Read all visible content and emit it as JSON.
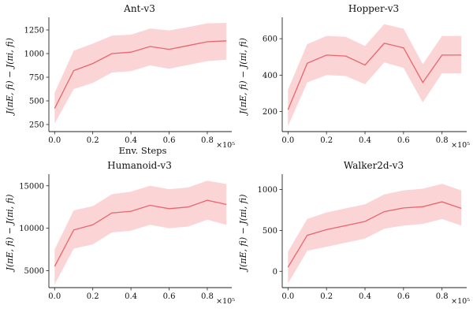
{
  "figure": {
    "background": "#ffffff",
    "line_color": "#e8666c",
    "band_color": "#f9c6c8"
  },
  "chart_data": [
    {
      "type": "line",
      "title": "Ant-v3",
      "xlabel": "Env. Steps",
      "ylabel": "J(πE, fi) − J(πi, fi)",
      "x_multiplier": "×10⁵",
      "x": [
        0.0,
        0.1,
        0.2,
        0.3,
        0.4,
        0.5,
        0.6,
        0.7,
        0.8,
        0.9
      ],
      "xlim": [
        -0.03,
        0.92
      ],
      "ylim": [
        175,
        1350
      ],
      "xticks": [
        0.0,
        0.2,
        0.4,
        0.6,
        0.8
      ],
      "xtick_labels": [
        "0.0",
        "0.2",
        "0.4",
        "0.6",
        "0.8"
      ],
      "yticks": [
        250,
        500,
        750,
        1000,
        1250
      ],
      "ytick_labels": [
        "250",
        "500",
        "750",
        "1000",
        "1250"
      ],
      "series": [
        {
          "mean": [
            420,
            820,
            895,
            1000,
            1015,
            1075,
            1045,
            1085,
            1125,
            1135
          ],
          "lower": [
            260,
            625,
            690,
            800,
            815,
            875,
            840,
            880,
            920,
            935
          ],
          "upper": [
            585,
            1030,
            1105,
            1190,
            1200,
            1265,
            1245,
            1280,
            1320,
            1325
          ]
        }
      ]
    },
    {
      "type": "line",
      "title": "Hopper-v3",
      "xlabel": "",
      "ylabel": "J(πE, fi) − J(πi, fi)",
      "x_multiplier": "×10⁵",
      "x": [
        0.0,
        0.1,
        0.2,
        0.3,
        0.4,
        0.5,
        0.6,
        0.7,
        0.8,
        0.9
      ],
      "xlim": [
        -0.03,
        0.92
      ],
      "ylim": [
        90,
        700
      ],
      "xticks": [
        0.0,
        0.2,
        0.4,
        0.6,
        0.8
      ],
      "xtick_labels": [
        "0.0",
        "0.2",
        "0.4",
        "0.6",
        "0.8"
      ],
      "yticks": [
        200,
        400,
        600
      ],
      "ytick_labels": [
        "200",
        "400",
        "600"
      ],
      "series": [
        {
          "mean": [
            210,
            465,
            510,
            505,
            455,
            575,
            550,
            360,
            510,
            510
          ],
          "lower": [
            120,
            360,
            400,
            395,
            350,
            470,
            440,
            250,
            410,
            410
          ],
          "upper": [
            320,
            570,
            615,
            610,
            560,
            680,
            655,
            460,
            615,
            615
          ]
        }
      ]
    },
    {
      "type": "line",
      "title": "Humanoid-v3",
      "xlabel": "",
      "ylabel": "J(πE, fi) − J(πi, fi)",
      "x_multiplier": "×10⁵",
      "x": [
        0.0,
        0.1,
        0.2,
        0.3,
        0.4,
        0.5,
        0.6,
        0.7,
        0.8,
        0.9
      ],
      "xlim": [
        -0.03,
        0.92
      ],
      "ylim": [
        3000,
        16000
      ],
      "xticks": [
        0.0,
        0.2,
        0.4,
        0.6,
        0.8
      ],
      "xtick_labels": [
        "0.0",
        "0.2",
        "0.4",
        "0.6",
        "0.8"
      ],
      "yticks": [
        5000,
        10000,
        15000
      ],
      "ytick_labels": [
        "5000",
        "10000",
        "15000"
      ],
      "series": [
        {
          "mean": [
            5500,
            9800,
            10400,
            11800,
            12000,
            12700,
            12300,
            12500,
            13300,
            12800
          ],
          "lower": [
            3400,
            7600,
            8100,
            9500,
            9700,
            10400,
            10000,
            10200,
            11000,
            10400
          ],
          "upper": [
            7500,
            12100,
            12600,
            14000,
            14300,
            15000,
            14600,
            14800,
            15600,
            15200
          ]
        }
      ]
    },
    {
      "type": "line",
      "title": "Walker2d-v3",
      "xlabel": "",
      "ylabel": "J(πE, fi) − J(πi, fi)",
      "x_multiplier": "×10⁵",
      "x": [
        0.0,
        0.1,
        0.2,
        0.3,
        0.4,
        0.5,
        0.6,
        0.7,
        0.8,
        0.9
      ],
      "xlim": [
        -0.03,
        0.92
      ],
      "ylim": [
        -200,
        1150
      ],
      "xticks": [
        0.0,
        0.2,
        0.4,
        0.6,
        0.8
      ],
      "xtick_labels": [
        "0.0",
        "0.2",
        "0.4",
        "0.6",
        "0.8"
      ],
      "yticks": [
        0,
        500,
        1000
      ],
      "ytick_labels": [
        "0",
        "500",
        "1000"
      ],
      "series": [
        {
          "mean": [
            50,
            440,
            510,
            560,
            610,
            730,
            775,
            790,
            850,
            770
          ],
          "lower": [
            -150,
            250,
            300,
            350,
            400,
            520,
            560,
            580,
            640,
            560
          ],
          "upper": [
            240,
            640,
            720,
            770,
            820,
            940,
            990,
            1010,
            1070,
            990
          ]
        }
      ]
    }
  ]
}
